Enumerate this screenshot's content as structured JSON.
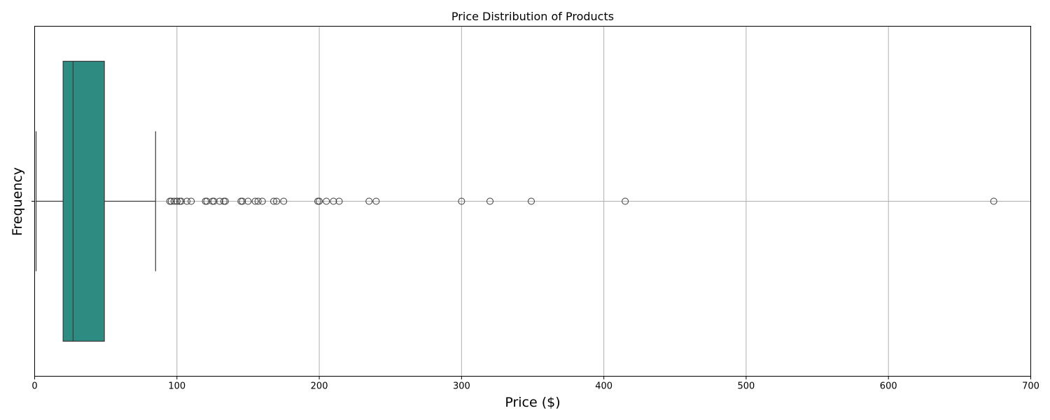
{
  "chart_data": {
    "type": "box",
    "title": "Price Distribution of Products",
    "xlabel": "Price ($)",
    "ylabel": "Frequency",
    "xlim": [
      0,
      700
    ],
    "xticks": [
      0,
      100,
      200,
      300,
      400,
      500,
      600,
      700
    ],
    "grid": true,
    "box_color": "#2e8b82",
    "edge_color": "#3b3b3b",
    "grid_color": "#b0b0b0",
    "box": {
      "whisker_low": 1,
      "q1": 20,
      "median": 27,
      "q3": 49,
      "whisker_high": 85
    },
    "outliers": [
      95,
      96,
      98,
      100,
      100,
      102,
      103,
      107,
      110,
      120,
      121,
      125,
      126,
      130,
      133,
      134,
      145,
      146,
      150,
      155,
      157,
      160,
      168,
      170,
      175,
      199,
      200,
      205,
      210,
      214,
      235,
      240,
      300,
      320,
      349,
      415,
      674
    ]
  }
}
